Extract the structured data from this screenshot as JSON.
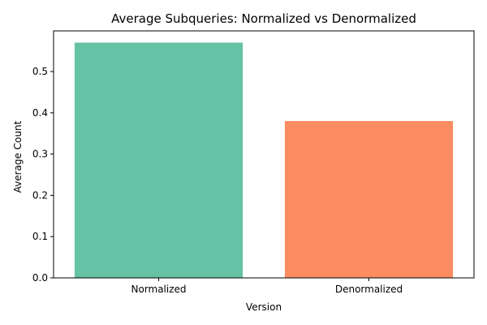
{
  "chart_data": {
    "type": "bar",
    "title": "Average Subqueries: Normalized vs Denormalized",
    "xlabel": "Version",
    "ylabel": "Average Count",
    "categories": [
      "Normalized",
      "Denormalized"
    ],
    "values": [
      0.57,
      0.38
    ],
    "colors": [
      "#66c2a5",
      "#fc8d62"
    ],
    "ylim": [
      0,
      0.5985
    ],
    "yticks": [
      0.0,
      0.1,
      0.2,
      0.3,
      0.4,
      0.5
    ],
    "ytick_labels": [
      "0.0",
      "0.1",
      "0.2",
      "0.3",
      "0.4",
      "0.5"
    ],
    "grid": false,
    "legend": "none"
  }
}
